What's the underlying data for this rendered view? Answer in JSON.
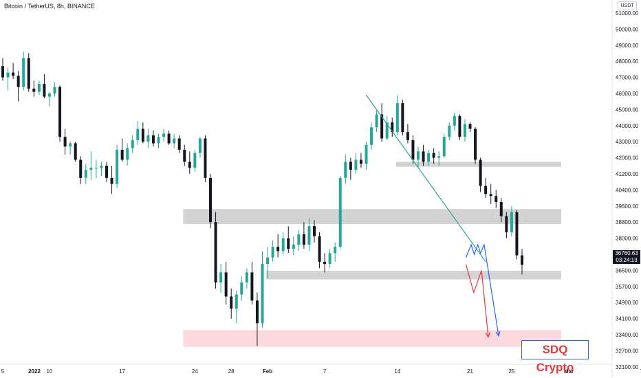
{
  "header": {
    "title": "Bitcoin / TetherUS, 8h, BINANCE",
    "currency": "USDT"
  },
  "price_tag": {
    "price": "36760.63",
    "countdown": "03:24:13"
  },
  "watermark": {
    "text": "SDQ Crypto"
  },
  "colors": {
    "up": "#26a69a",
    "down": "#131722",
    "trendline": "#26a69a",
    "zone": "#d3d3d3",
    "target_zone": "#fcd9dc",
    "red_path": "#e5383b",
    "blue_path": "#2962ff"
  },
  "chart_data": {
    "type": "candlestick",
    "title": "Bitcoin / TetherUS, 8h, BINANCE",
    "ylim": [
      31800,
      51600
    ],
    "yticks": [
      51000,
      50000,
      49000,
      48000,
      47000,
      46000,
      45000,
      44000,
      43000,
      42000,
      41200,
      40400,
      39600,
      38800,
      38000,
      37250,
      36500,
      35700,
      34900,
      34100,
      33400,
      32700,
      32100
    ],
    "ytick_labels": [
      "51000.00",
      "50000.00",
      "49000.00",
      "48000.00",
      "47000.00",
      "46000.00",
      "45000.00",
      "44000.00",
      "43000.00",
      "42000.00",
      "41200.00",
      "40400.00",
      "39600.00",
      "38800.00",
      "38000.00",
      "37250.00",
      "36500.00",
      "35700.00",
      "34900.00",
      "34100.00",
      "33400.00",
      "32700.00",
      "32100.00"
    ],
    "xtick_labels": [
      "2022",
      "5",
      "10",
      "17",
      "24",
      "28",
      "Feb",
      "7",
      "14",
      "21",
      "25",
      "Mar",
      "7"
    ],
    "xtick_bars": [
      -13,
      0,
      9,
      23,
      37,
      44,
      51,
      62,
      76,
      90,
      98,
      109,
      123
    ],
    "candles": [
      [
        47700,
        48200,
        46800,
        47000
      ],
      [
        47000,
        47600,
        46200,
        47300
      ],
      [
        47300,
        47900,
        46900,
        47100
      ],
      [
        47100,
        47400,
        45500,
        46400
      ],
      [
        46400,
        48600,
        46200,
        48200
      ],
      [
        48200,
        48500,
        46100,
        46300
      ],
      [
        46300,
        46800,
        45800,
        46100
      ],
      [
        46100,
        46800,
        45900,
        46600
      ],
      [
        46600,
        47200,
        45700,
        45800
      ],
      [
        45800,
        46100,
        45200,
        46000
      ],
      [
        46000,
        46700,
        45800,
        46400
      ],
      [
        46400,
        46500,
        43000,
        43300
      ],
      [
        43300,
        43800,
        42200,
        42700
      ],
      [
        42700,
        43000,
        42200,
        42900
      ],
      [
        42900,
        43000,
        41800,
        41900
      ],
      [
        41900,
        42100,
        40700,
        41000
      ],
      [
        41000,
        41700,
        40700,
        41400
      ],
      [
        41400,
        42400,
        40900,
        41500
      ],
      [
        41500,
        41900,
        41000,
        41500
      ],
      [
        41500,
        41800,
        41100,
        41600
      ],
      [
        41600,
        41800,
        40800,
        41000
      ],
      [
        41000,
        41600,
        40200,
        40700
      ],
      [
        40700,
        42800,
        40500,
        42500
      ],
      [
        42500,
        43200,
        41800,
        41900
      ],
      [
        41900,
        42900,
        41600,
        42600
      ],
      [
        42600,
        43400,
        42300,
        43100
      ],
      [
        43100,
        44300,
        42800,
        43800
      ],
      [
        43800,
        44200,
        42900,
        43000
      ],
      [
        43000,
        43800,
        42600,
        43400
      ],
      [
        43400,
        43700,
        42700,
        42900
      ],
      [
        42900,
        43500,
        42600,
        43300
      ],
      [
        43300,
        43800,
        43000,
        43500
      ],
      [
        43500,
        43700,
        42800,
        42900
      ],
      [
        42900,
        43500,
        42600,
        43200
      ],
      [
        43200,
        43400,
        42300,
        42500
      ],
      [
        42500,
        42800,
        41600,
        41800
      ],
      [
        41800,
        42400,
        41200,
        41500
      ],
      [
        41500,
        42500,
        41300,
        42300
      ],
      [
        42300,
        43300,
        42000,
        43200
      ],
      [
        43200,
        43400,
        40800,
        41000
      ],
      [
        41000,
        41200,
        38500,
        38800
      ],
      [
        38800,
        39300,
        35600,
        35900
      ],
      [
        35900,
        36800,
        35400,
        36400
      ],
      [
        36400,
        36900,
        34800,
        35200
      ],
      [
        35200,
        35600,
        34100,
        34600
      ],
      [
        34600,
        35500,
        33900,
        35300
      ],
      [
        35300,
        36200,
        35000,
        35900
      ],
      [
        35900,
        36600,
        35600,
        36400
      ],
      [
        36400,
        36900,
        34800,
        35000
      ],
      [
        35000,
        35400,
        32900,
        33900
      ],
      [
        33900,
        37400,
        33700,
        36800
      ],
      [
        36800,
        37600,
        36100,
        37100
      ],
      [
        37100,
        37900,
        36900,
        37600
      ],
      [
        37600,
        38200,
        37100,
        37400
      ],
      [
        37400,
        38300,
        37200,
        38000
      ],
      [
        38000,
        38600,
        37300,
        37500
      ],
      [
        37500,
        38100,
        37200,
        37700
      ],
      [
        37700,
        38400,
        37400,
        38200
      ],
      [
        38200,
        38800,
        37500,
        37700
      ],
      [
        37700,
        39000,
        37400,
        38600
      ],
      [
        38600,
        38900,
        37800,
        38100
      ],
      [
        38100,
        38300,
        36600,
        36900
      ],
      [
        36900,
        37300,
        36400,
        36800
      ],
      [
        36800,
        37500,
        36600,
        37300
      ],
      [
        37300,
        37800,
        36900,
        37600
      ],
      [
        37600,
        41100,
        37500,
        41000
      ],
      [
        41000,
        42200,
        40700,
        41800
      ],
      [
        41800,
        42000,
        40900,
        41400
      ],
      [
        41400,
        42300,
        41200,
        41900
      ],
      [
        41900,
        42300,
        41500,
        41700
      ],
      [
        41700,
        43000,
        41400,
        42800
      ],
      [
        42800,
        44200,
        42500,
        43900
      ],
      [
        43900,
        45000,
        43600,
        44700
      ],
      [
        44700,
        45400,
        43000,
        43200
      ],
      [
        43200,
        44600,
        43100,
        44200
      ],
      [
        44200,
        44500,
        43300,
        43600
      ],
      [
        43600,
        45900,
        43400,
        45400
      ],
      [
        45400,
        45600,
        43400,
        43600
      ],
      [
        43600,
        44100,
        42900,
        43100
      ],
      [
        43100,
        43400,
        41700,
        41900
      ],
      [
        41900,
        42700,
        41500,
        42400
      ],
      [
        42400,
        42800,
        41600,
        41800
      ],
      [
        41800,
        42500,
        41600,
        42300
      ],
      [
        42300,
        42600,
        41700,
        42000
      ],
      [
        42000,
        42400,
        41600,
        42100
      ],
      [
        42100,
        43500,
        42000,
        43300
      ],
      [
        43300,
        44200,
        43100,
        44000
      ],
      [
        44000,
        44800,
        43700,
        44600
      ],
      [
        44600,
        44700,
        43100,
        43300
      ],
      [
        43300,
        44400,
        43000,
        44100
      ],
      [
        44100,
        44200,
        43600,
        43800
      ],
      [
        43800,
        43900,
        41700,
        41900
      ],
      [
        41900,
        42000,
        40300,
        40600
      ],
      [
        40600,
        41000,
        40000,
        40200
      ],
      [
        40200,
        40700,
        39700,
        40100
      ],
      [
        40100,
        40400,
        39500,
        39800
      ],
      [
        39800,
        40000,
        38800,
        39100
      ],
      [
        39100,
        39300,
        38000,
        38300
      ],
      [
        38300,
        39600,
        38100,
        39300
      ],
      [
        39300,
        39400,
        37000,
        37200
      ],
      [
        37200,
        37500,
        36300,
        36760
      ]
    ],
    "zones": [
      {
        "y1": 41800,
        "y2": 41550,
        "x_start": 76
      },
      {
        "y1": 39450,
        "y2": 38700,
        "x_start": 35
      },
      {
        "y1": 36480,
        "y2": 36050,
        "x_start": 51
      },
      {
        "y1": 33600,
        "y2": 32870,
        "x_start": 35
      }
    ],
    "trendline": {
      "start": [
        70,
        45900
      ],
      "end": [
        93,
        36900
      ]
    },
    "red_path": [
      [
        89.2,
        36780
      ],
      [
        90.7,
        35400
      ],
      [
        92.2,
        36500
      ],
      [
        93.5,
        33300
      ]
    ],
    "blue_path": [
      [
        89.2,
        37100
      ],
      [
        90.2,
        37700
      ],
      [
        90.8,
        37250
      ],
      [
        91.5,
        37700
      ],
      [
        92,
        37300
      ],
      [
        92.7,
        37700
      ],
      [
        95.5,
        33350
      ]
    ]
  }
}
